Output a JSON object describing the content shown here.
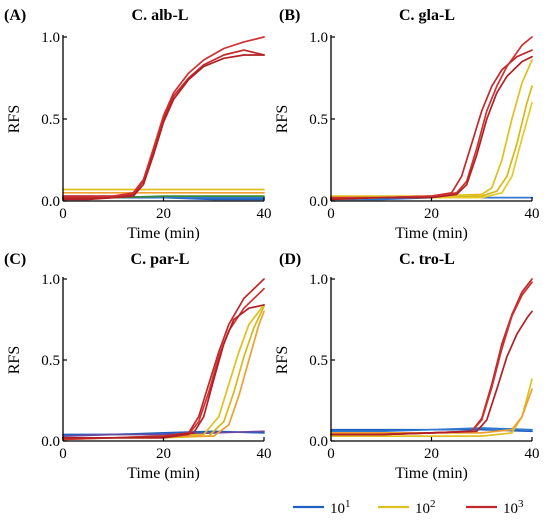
{
  "legend": {
    "entries": [
      {
        "base": "10",
        "exp": "1",
        "color": "#2060c0"
      },
      {
        "base": "10",
        "exp": "2",
        "color": "#e0c020"
      },
      {
        "base": "10",
        "exp": "3",
        "color": "#c0282a"
      }
    ]
  },
  "chart_data": [
    {
      "type": "line",
      "panel_letter": "(A)",
      "title": "C. alb-L",
      "xlabel": "Time (min)",
      "ylabel": "RFS",
      "xlim": [
        0,
        40
      ],
      "ylim": [
        0,
        1
      ],
      "xticks": [
        "0",
        "20",
        "40"
      ],
      "yticks": [
        "0.0",
        "0.5",
        "1.0"
      ],
      "grid": false,
      "series": [
        {
          "group": "10^1",
          "color": "#2060c0",
          "x": [
            0,
            10,
            20,
            30,
            40
          ],
          "y": [
            0.02,
            0.02,
            0.02,
            0.01,
            0.01
          ]
        },
        {
          "group": "10^1",
          "color": "#2f7ad0",
          "x": [
            0,
            10,
            20,
            30,
            40
          ],
          "y": [
            0.03,
            0.03,
            0.02,
            0.02,
            0.02
          ]
        },
        {
          "group": "10^1",
          "color": "#3b8a3b",
          "x": [
            0,
            10,
            20,
            30,
            40
          ],
          "y": [
            0.01,
            0.02,
            0.03,
            0.03,
            0.03
          ]
        },
        {
          "group": "10^2",
          "color": "#e0c020",
          "x": [
            0,
            10,
            20,
            30,
            40
          ],
          "y": [
            0.07,
            0.07,
            0.07,
            0.07,
            0.07
          ]
        },
        {
          "group": "10^2",
          "color": "#f0a030",
          "x": [
            0,
            10,
            20,
            30,
            40
          ],
          "y": [
            0.05,
            0.05,
            0.05,
            0.05,
            0.05
          ]
        },
        {
          "group": "10^3",
          "color": "#c0282a",
          "x": [
            0,
            5,
            10,
            14,
            16,
            18,
            20,
            22,
            25,
            28,
            32,
            36,
            40
          ],
          "y": [
            0.02,
            0.02,
            0.02,
            0.04,
            0.12,
            0.3,
            0.5,
            0.64,
            0.75,
            0.83,
            0.89,
            0.92,
            0.89
          ]
        },
        {
          "group": "10^3",
          "color": "#d03030",
          "x": [
            0,
            5,
            10,
            14,
            16,
            18,
            20,
            22,
            25,
            28,
            32,
            36,
            40
          ],
          "y": [
            0.03,
            0.03,
            0.03,
            0.05,
            0.13,
            0.32,
            0.52,
            0.66,
            0.78,
            0.86,
            0.93,
            0.97,
            1.0
          ]
        },
        {
          "group": "10^3",
          "color": "#b02024",
          "x": [
            0,
            5,
            10,
            14,
            16,
            18,
            20,
            22,
            25,
            28,
            32,
            36,
            40
          ],
          "y": [
            0.01,
            0.01,
            0.02,
            0.03,
            0.1,
            0.28,
            0.48,
            0.62,
            0.74,
            0.82,
            0.87,
            0.89,
            0.89
          ]
        }
      ]
    },
    {
      "type": "line",
      "panel_letter": "(B)",
      "title": "C. gla-L",
      "xlabel": "Time (min)",
      "ylabel": "RFS",
      "xlim": [
        0,
        40
      ],
      "ylim": [
        0,
        1
      ],
      "xticks": [
        "0",
        "20",
        "40"
      ],
      "yticks": [
        "0.0",
        "0.5",
        "1.0"
      ],
      "grid": false,
      "series": [
        {
          "group": "10^1",
          "color": "#2060c0",
          "x": [
            0,
            10,
            20,
            30,
            40
          ],
          "y": [
            0.02,
            0.02,
            0.02,
            0.02,
            0.02
          ]
        },
        {
          "group": "10^1",
          "color": "#2f7ad0",
          "x": [
            0,
            10,
            20,
            30,
            40
          ],
          "y": [
            0.01,
            0.01,
            0.02,
            0.02,
            0.02
          ]
        },
        {
          "group": "10^2",
          "color": "#e0c020",
          "x": [
            0,
            10,
            20,
            30,
            32,
            34,
            36,
            38,
            40
          ],
          "y": [
            0.03,
            0.03,
            0.03,
            0.04,
            0.08,
            0.25,
            0.5,
            0.72,
            0.86
          ]
        },
        {
          "group": "10^2",
          "color": "#d8b818",
          "x": [
            0,
            10,
            20,
            30,
            33,
            35,
            37,
            39,
            40
          ],
          "y": [
            0.02,
            0.02,
            0.02,
            0.03,
            0.06,
            0.15,
            0.35,
            0.6,
            0.7
          ]
        },
        {
          "group": "10^2",
          "color": "#e8c828",
          "x": [
            0,
            10,
            20,
            30,
            34,
            36,
            38,
            40
          ],
          "y": [
            0.01,
            0.02,
            0.02,
            0.02,
            0.05,
            0.15,
            0.38,
            0.6
          ]
        },
        {
          "group": "10^3",
          "color": "#c0282a",
          "x": [
            0,
            10,
            20,
            24,
            26,
            28,
            30,
            32,
            34,
            37,
            40
          ],
          "y": [
            0.02,
            0.02,
            0.03,
            0.05,
            0.15,
            0.35,
            0.55,
            0.7,
            0.8,
            0.88,
            0.92
          ]
        },
        {
          "group": "10^3",
          "color": "#d03030",
          "x": [
            0,
            10,
            20,
            25,
            27,
            29,
            31,
            33,
            35,
            38,
            40
          ],
          "y": [
            0.02,
            0.02,
            0.03,
            0.05,
            0.12,
            0.32,
            0.55,
            0.7,
            0.82,
            0.95,
            1.0
          ]
        },
        {
          "group": "10^3",
          "color": "#b02024",
          "x": [
            0,
            10,
            20,
            25,
            27,
            29,
            31,
            33,
            35,
            38,
            40
          ],
          "y": [
            0.01,
            0.02,
            0.02,
            0.04,
            0.1,
            0.28,
            0.5,
            0.66,
            0.76,
            0.85,
            0.88
          ]
        }
      ]
    },
    {
      "type": "line",
      "panel_letter": "(C)",
      "title": "C. par-L",
      "xlabel": "Time (min)",
      "ylabel": "RFS",
      "xlim": [
        0,
        40
      ],
      "ylim": [
        0,
        1
      ],
      "xticks": [
        "0",
        "20",
        "40"
      ],
      "yticks": [
        "0.0",
        "0.5",
        "1.0"
      ],
      "grid": false,
      "series": [
        {
          "group": "10^1",
          "color": "#2060c0",
          "x": [
            0,
            10,
            20,
            30,
            40
          ],
          "y": [
            0.04,
            0.04,
            0.05,
            0.06,
            0.05
          ]
        },
        {
          "group": "10^1",
          "color": "#6a4aa0",
          "x": [
            0,
            10,
            20,
            30,
            40
          ],
          "y": [
            0.03,
            0.04,
            0.04,
            0.05,
            0.06
          ]
        },
        {
          "group": "10^2",
          "color": "#e0c020",
          "x": [
            0,
            10,
            20,
            28,
            31,
            33,
            35,
            37,
            40
          ],
          "y": [
            0.02,
            0.02,
            0.03,
            0.04,
            0.15,
            0.35,
            0.55,
            0.72,
            0.84
          ]
        },
        {
          "group": "10^2",
          "color": "#d8b818",
          "x": [
            0,
            10,
            20,
            29,
            32,
            34,
            36,
            38,
            40
          ],
          "y": [
            0.01,
            0.02,
            0.02,
            0.03,
            0.12,
            0.3,
            0.52,
            0.7,
            0.83
          ]
        },
        {
          "group": "10^2",
          "color": "#f0a030",
          "x": [
            0,
            10,
            20,
            30,
            33,
            35,
            37,
            39,
            40
          ],
          "y": [
            0.02,
            0.02,
            0.03,
            0.03,
            0.1,
            0.28,
            0.5,
            0.72,
            0.8
          ]
        },
        {
          "group": "10^3",
          "color": "#c0282a",
          "x": [
            0,
            10,
            20,
            25,
            27,
            29,
            31,
            33,
            36,
            40
          ],
          "y": [
            0.02,
            0.02,
            0.03,
            0.05,
            0.15,
            0.35,
            0.55,
            0.72,
            0.88,
            1.0
          ]
        },
        {
          "group": "10^3",
          "color": "#d03030",
          "x": [
            0,
            10,
            20,
            25,
            27,
            29,
            31,
            33,
            36,
            40
          ],
          "y": [
            0.01,
            0.02,
            0.02,
            0.04,
            0.12,
            0.3,
            0.52,
            0.68,
            0.82,
            0.94
          ]
        },
        {
          "group": "10^3",
          "color": "#b02024",
          "x": [
            0,
            10,
            20,
            26,
            28,
            30,
            32,
            34,
            37,
            40
          ],
          "y": [
            0.02,
            0.02,
            0.02,
            0.05,
            0.15,
            0.38,
            0.6,
            0.75,
            0.82,
            0.84
          ]
        }
      ]
    },
    {
      "type": "line",
      "panel_letter": "(D)",
      "title": "C. tro-L",
      "xlabel": "Time (min)",
      "ylabel": "RFS",
      "xlim": [
        0,
        40
      ],
      "ylim": [
        0,
        1
      ],
      "xticks": [
        "0",
        "20",
        "40"
      ],
      "yticks": [
        "0.0",
        "0.5",
        "1.0"
      ],
      "grid": false,
      "series": [
        {
          "group": "10^1",
          "color": "#2060c0",
          "x": [
            0,
            10,
            20,
            30,
            40
          ],
          "y": [
            0.07,
            0.07,
            0.07,
            0.07,
            0.06
          ]
        },
        {
          "group": "10^1",
          "color": "#2f7ad0",
          "x": [
            0,
            10,
            20,
            30,
            40
          ],
          "y": [
            0.06,
            0.06,
            0.07,
            0.08,
            0.07
          ]
        },
        {
          "group": "10^2",
          "color": "#e0c020",
          "x": [
            0,
            10,
            20,
            30,
            36,
            38,
            40
          ],
          "y": [
            0.03,
            0.03,
            0.03,
            0.03,
            0.05,
            0.15,
            0.38
          ]
        },
        {
          "group": "10^2",
          "color": "#f0a030",
          "x": [
            0,
            10,
            20,
            30,
            36,
            38,
            40
          ],
          "y": [
            0.05,
            0.05,
            0.05,
            0.05,
            0.07,
            0.15,
            0.32
          ]
        },
        {
          "group": "10^3",
          "color": "#c0282a",
          "x": [
            0,
            10,
            20,
            28,
            30,
            32,
            34,
            36,
            38,
            40
          ],
          "y": [
            0.04,
            0.04,
            0.05,
            0.06,
            0.14,
            0.35,
            0.6,
            0.78,
            0.92,
            1.0
          ]
        },
        {
          "group": "10^3",
          "color": "#d03030",
          "x": [
            0,
            10,
            20,
            28,
            30,
            32,
            34,
            36,
            38,
            40
          ],
          "y": [
            0.04,
            0.04,
            0.05,
            0.06,
            0.13,
            0.33,
            0.57,
            0.77,
            0.9,
            0.98
          ]
        },
        {
          "group": "10^3",
          "color": "#b02024",
          "x": [
            0,
            10,
            20,
            29,
            31,
            33,
            35,
            37,
            39,
            40
          ],
          "y": [
            0.04,
            0.04,
            0.05,
            0.06,
            0.13,
            0.32,
            0.52,
            0.66,
            0.76,
            0.8
          ]
        }
      ]
    }
  ]
}
